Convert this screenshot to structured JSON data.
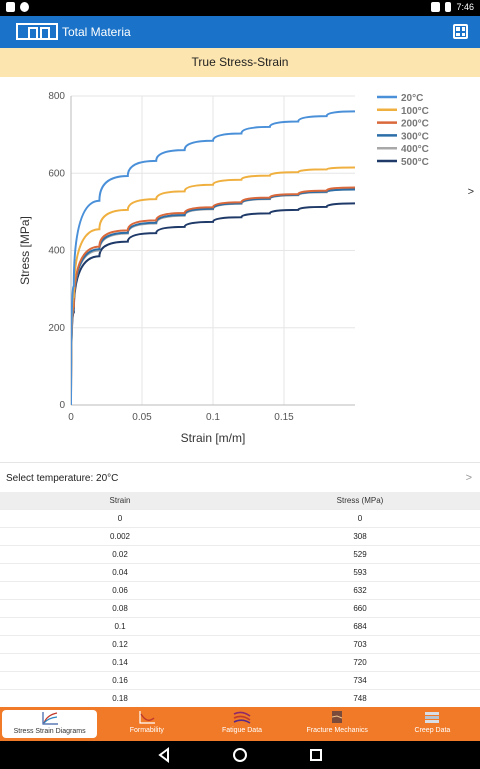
{
  "status_bar": {
    "time": "7:46"
  },
  "app": {
    "title": "Total Materia"
  },
  "header": {
    "title": "True Stress-Strain"
  },
  "chart_data": {
    "type": "line",
    "xlabel": "Strain [m/m]",
    "ylabel": "Stress [MPa]",
    "xlim": [
      0,
      0.2
    ],
    "ylim": [
      0,
      800
    ],
    "xticks": [
      "0",
      "0.05",
      "0.1",
      "0.15"
    ],
    "yticks": [
      "0",
      "200",
      "400",
      "600",
      "800"
    ],
    "grid": true,
    "legend_position": "top-right",
    "series": [
      {
        "name": "20°C",
        "color": "#4a90d9",
        "x": [
          0,
          0.002,
          0.02,
          0.04,
          0.06,
          0.08,
          0.1,
          0.12,
          0.14,
          0.16,
          0.18,
          0.2
        ],
        "y": [
          0,
          308,
          529,
          593,
          632,
          660,
          684,
          703,
          720,
          734,
          748,
          760
        ]
      },
      {
        "name": "100°C",
        "color": "#f0b040",
        "x": [
          0,
          0.002,
          0.02,
          0.04,
          0.06,
          0.08,
          0.1,
          0.12,
          0.14,
          0.16,
          0.18,
          0.2
        ],
        "y": [
          0,
          280,
          455,
          505,
          533,
          553,
          570,
          583,
          594,
          603,
          610,
          615
        ]
      },
      {
        "name": "200°C",
        "color": "#d9683a",
        "x": [
          0,
          0.002,
          0.02,
          0.04,
          0.06,
          0.08,
          0.1,
          0.12,
          0.14,
          0.16,
          0.18,
          0.2
        ],
        "y": [
          0,
          255,
          410,
          452,
          478,
          497,
          512,
          525,
          537,
          546,
          555,
          563
        ]
      },
      {
        "name": "300°C",
        "color": "#2b6ea8",
        "x": [
          0,
          0.002,
          0.02,
          0.04,
          0.06,
          0.08,
          0.1,
          0.12,
          0.14,
          0.16,
          0.18,
          0.2
        ],
        "y": [
          0,
          250,
          403,
          446,
          472,
          492,
          508,
          522,
          534,
          544,
          552,
          558
        ]
      },
      {
        "name": "400°C",
        "color": "#a8a8a8",
        "x": [
          0,
          0.002,
          0.02,
          0.04,
          0.06,
          0.08,
          0.1,
          0.12,
          0.14,
          0.16,
          0.18,
          0.2
        ],
        "y": [
          0,
          248,
          400,
          444,
          470,
          490,
          507,
          521,
          533,
          543,
          551,
          558
        ]
      },
      {
        "name": "500°C",
        "color": "#1f3a68",
        "x": [
          0,
          0.002,
          0.02,
          0.04,
          0.06,
          0.08,
          0.1,
          0.12,
          0.14,
          0.16,
          0.18,
          0.2
        ],
        "y": [
          0,
          240,
          385,
          423,
          445,
          461,
          474,
          486,
          496,
          505,
          513,
          522
        ]
      }
    ]
  },
  "chart_next_label": ">",
  "select": {
    "label": "Select temperature: 20°C",
    "arrow": ">"
  },
  "table": {
    "columns": [
      "Strain",
      "Stress (MPa)"
    ],
    "rows": [
      [
        "0",
        "0"
      ],
      [
        "0.002",
        "308"
      ],
      [
        "0.02",
        "529"
      ],
      [
        "0.04",
        "593"
      ],
      [
        "0.06",
        "632"
      ],
      [
        "0.08",
        "660"
      ],
      [
        "0.1",
        "684"
      ],
      [
        "0.12",
        "703"
      ],
      [
        "0.14",
        "720"
      ],
      [
        "0.16",
        "734"
      ],
      [
        "0.18",
        "748"
      ]
    ]
  },
  "bottom_nav": [
    {
      "label": "Stress Strain Diagrams",
      "active": true
    },
    {
      "label": "Formability",
      "active": false
    },
    {
      "label": "Fatigue Data",
      "active": false
    },
    {
      "label": "Fracture Mechanics",
      "active": false
    },
    {
      "label": "Creep Data",
      "active": false
    }
  ],
  "colors": {
    "primary": "#1a73c9",
    "accent": "#f07a28",
    "header_bg": "#fde5b0"
  }
}
